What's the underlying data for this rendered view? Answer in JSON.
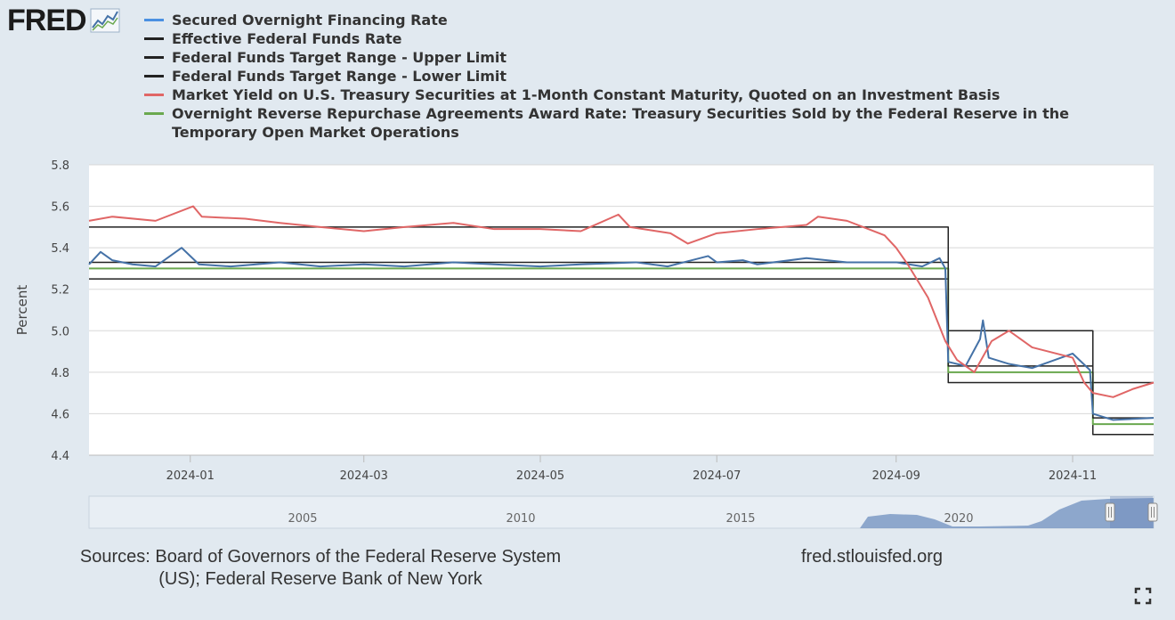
{
  "header": {
    "logo_text": "FRED"
  },
  "colors": {
    "sofr": "#4572a7",
    "effr": "#222222",
    "upper": "#222222",
    "lower": "#222222",
    "tbill": "#e06666",
    "rrp": "#6aa84f",
    "plot_bg": "#ffffff",
    "page_bg": "#e1e9f0",
    "grid": "#d8d8d8",
    "navigator_fill": "#7d9ac4"
  },
  "legend": [
    {
      "key": "sofr",
      "label": "Secured Overnight Financing Rate",
      "color": "#4a90e2"
    },
    {
      "key": "effr",
      "label": "Effective Federal Funds Rate",
      "color": "#222222"
    },
    {
      "key": "upper",
      "label": "Federal Funds Target Range - Upper Limit",
      "color": "#222222"
    },
    {
      "key": "lower",
      "label": "Federal Funds Target Range - Lower Limit",
      "color": "#222222"
    },
    {
      "key": "tbill",
      "label": "Market Yield on U.S. Treasury Securities at 1-Month Constant Maturity, Quoted on an Investment Basis",
      "color": "#e06666"
    },
    {
      "key": "rrp",
      "label": "Overnight Reverse Repurchase Agreements Award Rate: Treasury Securities Sold by the Federal Reserve in the Temporary Open Market Operations",
      "color": "#6aa84f"
    }
  ],
  "chart_data": {
    "type": "line",
    "title": "",
    "xlabel": "",
    "ylabel": "Percent",
    "xlim": [
      "2023-11-27",
      "2024-11-29"
    ],
    "ylim": [
      4.4,
      5.8
    ],
    "y_ticks": [
      "4.4",
      "4.6",
      "4.8",
      "5.0",
      "5.2",
      "5.4",
      "5.6",
      "5.8"
    ],
    "x_ticks": [
      {
        "date": "2024-01-01",
        "label": "2024-01"
      },
      {
        "date": "2024-03-01",
        "label": "2024-03"
      },
      {
        "date": "2024-05-01",
        "label": "2024-05"
      },
      {
        "date": "2024-07-01",
        "label": "2024-07"
      },
      {
        "date": "2024-09-01",
        "label": "2024-09"
      },
      {
        "date": "2024-11-01",
        "label": "2024-11"
      }
    ],
    "grid": true,
    "legend_position": "top",
    "series": [
      {
        "name": "Federal Funds Target Range - Upper Limit",
        "key": "upper",
        "step": true,
        "points": [
          [
            "2023-11-27",
            5.5
          ],
          [
            "2024-09-19",
            5.0
          ],
          [
            "2024-11-08",
            4.75
          ],
          [
            "2024-11-29",
            4.75
          ]
        ]
      },
      {
        "name": "Federal Funds Target Range - Lower Limit",
        "key": "lower",
        "step": true,
        "points": [
          [
            "2023-11-27",
            5.25
          ],
          [
            "2024-09-19",
            4.75
          ],
          [
            "2024-11-08",
            4.5
          ],
          [
            "2024-11-29",
            4.5
          ]
        ]
      },
      {
        "name": "Overnight Reverse Repurchase Agreements Award Rate: Treasury Securities Sold by the Federal Reserve in the Temporary Open Market Operations",
        "key": "rrp",
        "step": true,
        "points": [
          [
            "2023-11-27",
            5.3
          ],
          [
            "2024-09-19",
            4.8
          ],
          [
            "2024-11-08",
            4.55
          ],
          [
            "2024-11-29",
            4.55
          ]
        ]
      },
      {
        "name": "Effective Federal Funds Rate",
        "key": "effr",
        "step": true,
        "points": [
          [
            "2023-11-27",
            5.33
          ],
          [
            "2024-09-19",
            4.83
          ],
          [
            "2024-11-08",
            4.58
          ],
          [
            "2024-11-29",
            4.58
          ]
        ]
      },
      {
        "name": "Secured Overnight Financing Rate",
        "key": "sofr",
        "step": false,
        "points": [
          [
            "2023-11-27",
            5.32
          ],
          [
            "2023-12-01",
            5.38
          ],
          [
            "2023-12-05",
            5.34
          ],
          [
            "2023-12-12",
            5.32
          ],
          [
            "2023-12-20",
            5.31
          ],
          [
            "2023-12-29",
            5.4
          ],
          [
            "2024-01-04",
            5.32
          ],
          [
            "2024-01-15",
            5.31
          ],
          [
            "2024-02-01",
            5.33
          ],
          [
            "2024-02-15",
            5.31
          ],
          [
            "2024-03-01",
            5.32
          ],
          [
            "2024-03-15",
            5.31
          ],
          [
            "2024-04-01",
            5.33
          ],
          [
            "2024-04-15",
            5.32
          ],
          [
            "2024-05-01",
            5.31
          ],
          [
            "2024-05-15",
            5.32
          ],
          [
            "2024-06-03",
            5.33
          ],
          [
            "2024-06-14",
            5.31
          ],
          [
            "2024-06-28",
            5.36
          ],
          [
            "2024-07-01",
            5.33
          ],
          [
            "2024-07-10",
            5.34
          ],
          [
            "2024-07-15",
            5.32
          ],
          [
            "2024-08-01",
            5.35
          ],
          [
            "2024-08-15",
            5.33
          ],
          [
            "2024-09-01",
            5.33
          ],
          [
            "2024-09-10",
            5.31
          ],
          [
            "2024-09-16",
            5.35
          ],
          [
            "2024-09-18",
            5.3
          ],
          [
            "2024-09-19",
            4.85
          ],
          [
            "2024-09-25",
            4.83
          ],
          [
            "2024-09-30",
            4.96
          ],
          [
            "2024-10-01",
            5.05
          ],
          [
            "2024-10-03",
            4.87
          ],
          [
            "2024-10-10",
            4.84
          ],
          [
            "2024-10-18",
            4.82
          ],
          [
            "2024-11-01",
            4.89
          ],
          [
            "2024-11-07",
            4.81
          ],
          [
            "2024-11-08",
            4.6
          ],
          [
            "2024-11-15",
            4.57
          ],
          [
            "2024-11-29",
            4.58
          ]
        ]
      },
      {
        "name": "Market Yield on U.S. Treasury Securities at 1-Month Constant Maturity, Quoted on an Investment Basis",
        "key": "tbill",
        "step": false,
        "points": [
          [
            "2023-11-27",
            5.53
          ],
          [
            "2023-12-05",
            5.55
          ],
          [
            "2023-12-20",
            5.53
          ],
          [
            "2024-01-02",
            5.6
          ],
          [
            "2024-01-05",
            5.55
          ],
          [
            "2024-01-20",
            5.54
          ],
          [
            "2024-02-01",
            5.52
          ],
          [
            "2024-02-15",
            5.5
          ],
          [
            "2024-03-01",
            5.48
          ],
          [
            "2024-03-15",
            5.5
          ],
          [
            "2024-04-01",
            5.52
          ],
          [
            "2024-04-15",
            5.49
          ],
          [
            "2024-05-01",
            5.49
          ],
          [
            "2024-05-15",
            5.48
          ],
          [
            "2024-05-28",
            5.56
          ],
          [
            "2024-06-01",
            5.5
          ],
          [
            "2024-06-15",
            5.47
          ],
          [
            "2024-06-21",
            5.42
          ],
          [
            "2024-07-01",
            5.47
          ],
          [
            "2024-07-15",
            5.49
          ],
          [
            "2024-08-01",
            5.51
          ],
          [
            "2024-08-05",
            5.55
          ],
          [
            "2024-08-15",
            5.53
          ],
          [
            "2024-08-28",
            5.46
          ],
          [
            "2024-09-01",
            5.4
          ],
          [
            "2024-09-05",
            5.32
          ],
          [
            "2024-09-12",
            5.16
          ],
          [
            "2024-09-18",
            4.95
          ],
          [
            "2024-09-22",
            4.86
          ],
          [
            "2024-09-28",
            4.8
          ],
          [
            "2024-10-04",
            4.95
          ],
          [
            "2024-10-10",
            5.0
          ],
          [
            "2024-10-18",
            4.92
          ],
          [
            "2024-11-01",
            4.87
          ],
          [
            "2024-11-05",
            4.75
          ],
          [
            "2024-11-08",
            4.7
          ],
          [
            "2024-11-15",
            4.68
          ],
          [
            "2024-11-22",
            4.72
          ],
          [
            "2024-11-29",
            4.75
          ]
        ]
      }
    ]
  },
  "navigator": {
    "labels": [
      "2005",
      "2010",
      "2015",
      "2020"
    ]
  },
  "footer": {
    "sources_line1": "Sources: Board of Governors of the Federal Reserve System",
    "sources_line2": "(US); Federal Reserve Bank of New York",
    "site": "fred.stlouisfed.org"
  }
}
